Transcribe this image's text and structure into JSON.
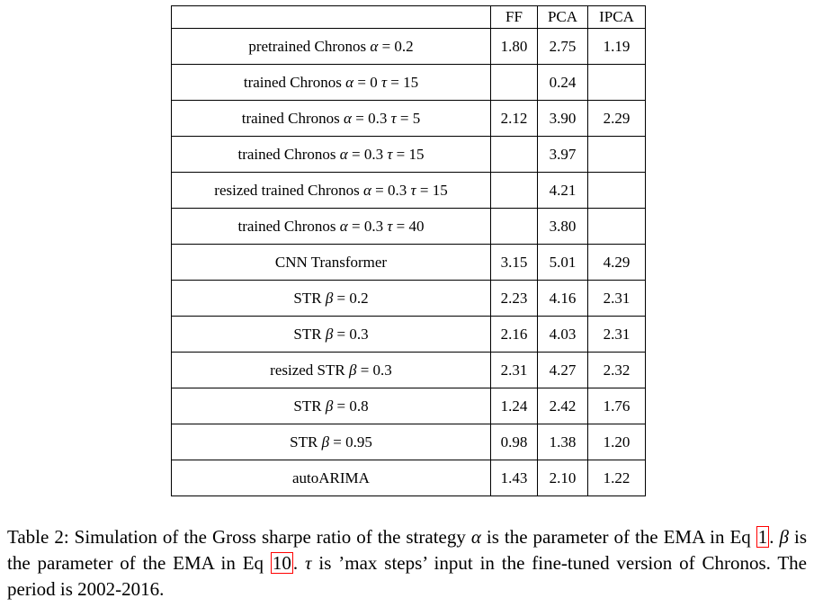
{
  "page": {
    "background": "#ffffff",
    "text_color": "#000000",
    "border_color": "#000000"
  },
  "table": {
    "columns": [
      "FF",
      "PCA",
      "IPCA"
    ],
    "rows": [
      {
        "label": "pretrained Chronos α = 0.2",
        "ff": "1.80",
        "pca": "2.75",
        "ipca": "1.19"
      },
      {
        "label": "trained Chronos α = 0 τ = 15",
        "ff": "",
        "pca": "0.24",
        "ipca": ""
      },
      {
        "label": "trained Chronos α = 0.3 τ = 5",
        "ff": "2.12",
        "pca": "3.90",
        "ipca": "2.29"
      },
      {
        "label": "trained Chronos α = 0.3 τ = 15",
        "ff": "",
        "pca": "3.97",
        "ipca": ""
      },
      {
        "label": "resized trained Chronos α = 0.3 τ = 15",
        "ff": "",
        "pca": "4.21",
        "ipca": ""
      },
      {
        "label": "trained Chronos α = 0.3 τ = 40",
        "ff": "",
        "pca": "3.80",
        "ipca": ""
      },
      {
        "label": "CNN Transformer",
        "ff": "3.15",
        "pca": "5.01",
        "ipca": "4.29"
      },
      {
        "label": "STR β = 0.2",
        "ff": "2.23",
        "pca": "4.16",
        "ipca": "2.31"
      },
      {
        "label": "STR β = 0.3",
        "ff": "2.16",
        "pca": "4.03",
        "ipca": "2.31"
      },
      {
        "label": "resized STR β = 0.3",
        "ff": "2.31",
        "pca": "4.27",
        "ipca": "2.32"
      },
      {
        "label": "STR β = 0.8",
        "ff": "1.24",
        "pca": "2.42",
        "ipca": "1.76"
      },
      {
        "label": "STR β = 0.95",
        "ff": "0.98",
        "pca": "1.38",
        "ipca": "1.20"
      },
      {
        "label": "autoARIMA",
        "ff": "1.43",
        "pca": "2.10",
        "ipca": "1.22"
      }
    ]
  },
  "caption": {
    "link_color": "#ff0000",
    "segments": [
      {
        "text": "Table 2: Simulation of the Gross sharpe ratio of the strategy ",
        "style": "normal"
      },
      {
        "text": "α",
        "style": "math"
      },
      {
        "text": " is the parameter of the EMA in Eq ",
        "style": "normal"
      },
      {
        "text": "1",
        "style": "link"
      },
      {
        "text": ". ",
        "style": "normal"
      },
      {
        "text": "β",
        "style": "math"
      },
      {
        "text": " is the parameter of the EMA in Eq ",
        "style": "normal"
      },
      {
        "text": "10",
        "style": "link"
      },
      {
        "text": ". ",
        "style": "normal"
      },
      {
        "text": "τ",
        "style": "math"
      },
      {
        "text": " is ’max steps’ input in the fine-tuned version of Chronos. The period is 2002-2016.",
        "style": "normal"
      }
    ]
  }
}
